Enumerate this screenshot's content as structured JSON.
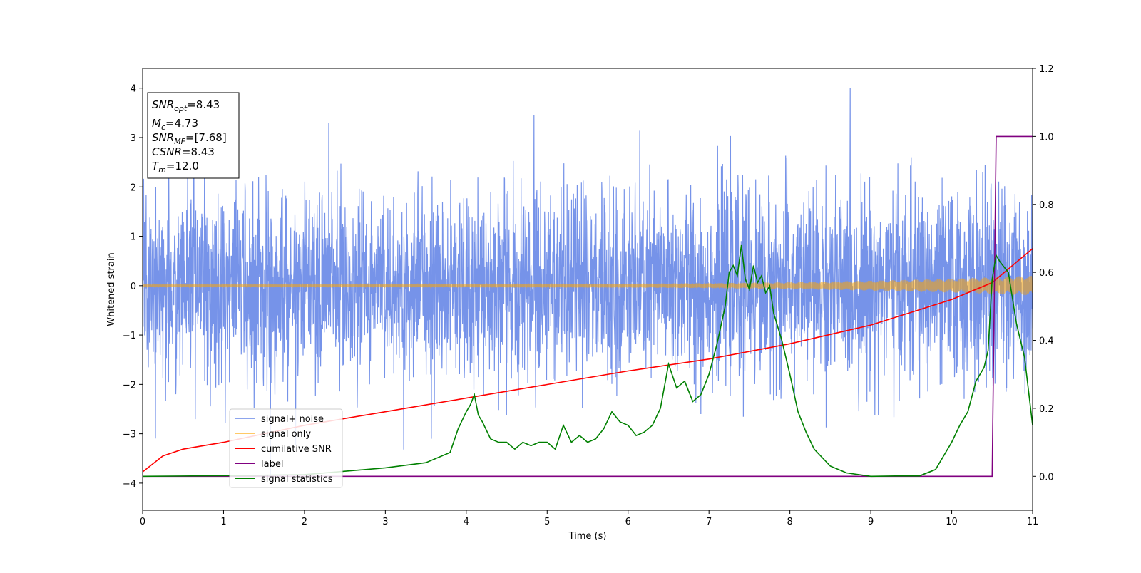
{
  "chart_data": {
    "type": "line",
    "xlabel": "Time (s)",
    "ylabel": "Whitened strain",
    "xlim": [
      0,
      11
    ],
    "ylim": [
      -4.55,
      4.4
    ],
    "y2lim": [
      -0.1,
      1.2
    ],
    "xticks": [
      "0",
      "1",
      "2",
      "3",
      "4",
      "5",
      "6",
      "7",
      "8",
      "9",
      "10",
      "11"
    ],
    "yticks": [
      "4",
      "3",
      "2",
      "1",
      "0",
      "−1",
      "−2",
      "−3",
      "−4"
    ],
    "y2ticks": [
      "0.0",
      "0.2",
      "0.4",
      "0.6",
      "0.8",
      "1.0",
      "1.2"
    ],
    "grid": false,
    "legend_position": "lower-left",
    "annotation": [
      {
        "base": "SNR",
        "sub": "opt",
        "value": "=8.43"
      },
      {
        "base": "M",
        "sub": "c",
        "value": "=4.73"
      },
      {
        "base": "SNR",
        "sub": "MF",
        "value": "=[7.68]"
      },
      {
        "base": "CSNR",
        "sub": "",
        "value": "=8.43"
      },
      {
        "base": "T",
        "sub": "m",
        "value": "=12.0"
      }
    ],
    "series": [
      {
        "name": "signal+ noise",
        "color": "#4169e1",
        "axis": "left",
        "band": {
          "typical_abs": 1.9,
          "max_abs": 4.0
        }
      },
      {
        "name": "signal only",
        "color": "#ffa500",
        "axis": "left",
        "amplitude_envelope": {
          "x": [
            0,
            2,
            4,
            6,
            7,
            8,
            9,
            10,
            11
          ],
          "y": [
            0.03,
            0.03,
            0.035,
            0.04,
            0.05,
            0.07,
            0.1,
            0.14,
            0.2
          ]
        }
      },
      {
        "name": "cumilative SNR",
        "color": "#ff0000",
        "axis": "right",
        "x": [
          0,
          0.25,
          0.5,
          1,
          2,
          3,
          4,
          5,
          6,
          7,
          8,
          9,
          10,
          10.5,
          11
        ],
        "y": [
          0.013,
          0.06,
          0.08,
          0.1,
          0.15,
          0.19,
          0.23,
          0.27,
          0.31,
          0.345,
          0.39,
          0.445,
          0.52,
          0.57,
          0.67
        ]
      },
      {
        "name": "label",
        "color": "#800080",
        "axis": "right",
        "x": [
          0,
          10.5,
          10.55,
          11
        ],
        "y": [
          0.0,
          0.0,
          1.0,
          1.0
        ]
      },
      {
        "name": "signal statistics",
        "color": "#008000",
        "axis": "right",
        "x": [
          0,
          1,
          2,
          2.5,
          3,
          3.5,
          3.8,
          3.9,
          4.0,
          4.05,
          4.1,
          4.15,
          4.2,
          4.3,
          4.4,
          4.5,
          4.6,
          4.7,
          4.8,
          4.9,
          5.0,
          5.1,
          5.2,
          5.3,
          5.4,
          5.5,
          5.6,
          5.7,
          5.8,
          5.9,
          6.0,
          6.1,
          6.2,
          6.3,
          6.4,
          6.5,
          6.6,
          6.7,
          6.8,
          6.9,
          7.0,
          7.1,
          7.2,
          7.25,
          7.3,
          7.35,
          7.4,
          7.45,
          7.5,
          7.55,
          7.6,
          7.65,
          7.7,
          7.75,
          7.8,
          7.9,
          8.0,
          8.1,
          8.2,
          8.3,
          8.5,
          8.7,
          9.0,
          9.3,
          9.6,
          9.8,
          10.0,
          10.1,
          10.2,
          10.3,
          10.4,
          10.45,
          10.5,
          10.55,
          10.6,
          10.7,
          10.8,
          10.9,
          11.0
        ],
        "y": [
          0.0,
          0.002,
          0.005,
          0.015,
          0.025,
          0.04,
          0.07,
          0.14,
          0.19,
          0.21,
          0.24,
          0.18,
          0.16,
          0.11,
          0.1,
          0.1,
          0.08,
          0.1,
          0.09,
          0.1,
          0.1,
          0.08,
          0.15,
          0.1,
          0.12,
          0.1,
          0.11,
          0.14,
          0.19,
          0.16,
          0.15,
          0.12,
          0.13,
          0.15,
          0.2,
          0.33,
          0.26,
          0.28,
          0.22,
          0.24,
          0.3,
          0.39,
          0.5,
          0.6,
          0.62,
          0.59,
          0.68,
          0.58,
          0.55,
          0.62,
          0.57,
          0.59,
          0.54,
          0.56,
          0.48,
          0.4,
          0.3,
          0.19,
          0.13,
          0.08,
          0.03,
          0.01,
          0.0,
          0.001,
          0.001,
          0.02,
          0.1,
          0.15,
          0.19,
          0.28,
          0.32,
          0.37,
          0.58,
          0.65,
          0.63,
          0.6,
          0.45,
          0.35,
          0.15
        ]
      }
    ]
  }
}
